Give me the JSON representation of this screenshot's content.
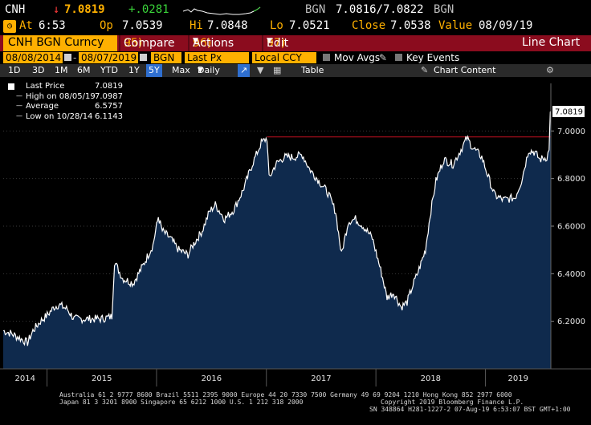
{
  "header": {
    "ticker": "CNH",
    "last_price": "7.0819",
    "change": "+.0281",
    "bid_source": "BGN",
    "bid": "7.0816",
    "ask": "7.0822",
    "ask_source": "BGN"
  },
  "quote": {
    "at_label": "At",
    "at_time": "6:53",
    "open_label": "Op",
    "open": "7.0539",
    "high_label": "Hi",
    "high": "7.0848",
    "low_label": "Lo",
    "low": "7.0521",
    "close_label": "Close",
    "close": "7.0538",
    "value_label": "Value",
    "value_date": "08/09/19"
  },
  "menubar": {
    "security": "CNH BGN Curncy",
    "compare_num": "95)",
    "compare": "Compare",
    "actions_num": "96)",
    "actions": "Actions",
    "edit_num": "97)",
    "edit": "Edit",
    "title": "Line Chart"
  },
  "params": {
    "start_date": "08/08/2014",
    "end_date": "08/07/2019",
    "source": "BGN",
    "field": "Last Px",
    "currency": "Local CCY",
    "mov_avgs": "Mov Avgs",
    "key_events": "Key Events"
  },
  "toolbar": {
    "periods": [
      "1D",
      "3D",
      "1M",
      "6M",
      "YTD",
      "1Y",
      "5Y",
      "Max"
    ],
    "selected_period": "5Y",
    "frequency": "Daily",
    "table": "Table",
    "chart_content": "Chart Content"
  },
  "legend": {
    "last_label": "Last Price",
    "last_value": "7.0819",
    "high_label": "High on 08/05/19",
    "high_value": "7.0987",
    "avg_label": "Average",
    "avg_value": "6.5757",
    "low_label": "Low on 10/28/14",
    "low_value": "6.1143"
  },
  "footer": {
    "line1": "Australia 61 2 9777 8600 Brazil 5511 2395 9000 Europe 44 20 7330 7500 Germany 49 69 9204 1210 Hong Kong 852 2977 6000",
    "line2a": "Japan 81 3 3201 8900       Singapore 65 6212 1000       U.S. 1 212 318 2000",
    "line2b": "Copyright 2019 Bloomberg Finance L.P.",
    "line3": "SN 348864 H281-1227-2 07-Aug-19  6:53:07 BST  GMT+1:00"
  },
  "colors": {
    "accent": "#ffb000",
    "menubar": "#8b0c1e",
    "area_fill": "#0f2a4d",
    "line": "#ffffff",
    "ref_line": "#c01020",
    "selected": "#2f6fd0"
  },
  "chart_data": {
    "type": "area",
    "x_start": "2014-08-08",
    "x_end": "2019-08-07",
    "ylim": [
      6.0,
      7.2
    ],
    "yticks": [
      "6.2000",
      "6.4000",
      "6.6000",
      "6.8000",
      "7.0000"
    ],
    "xtick_labels": [
      "2014",
      "2015",
      "2016",
      "2017",
      "2018",
      "2019"
    ],
    "last_value": 7.0819,
    "reference_line": 6.975,
    "series": [
      {
        "values": [
          [
            "2014-08-08",
            6.16
          ],
          [
            "2014-09-01",
            6.15
          ],
          [
            "2014-10-01",
            6.13
          ],
          [
            "2014-10-28",
            6.11
          ],
          [
            "2014-11-15",
            6.16
          ],
          [
            "2014-12-10",
            6.2
          ],
          [
            "2015-01-05",
            6.23
          ],
          [
            "2015-01-25",
            6.26
          ],
          [
            "2015-02-10",
            6.27
          ],
          [
            "2015-03-10",
            6.25
          ],
          [
            "2015-04-01",
            6.21
          ],
          [
            "2015-05-01",
            6.21
          ],
          [
            "2015-06-01",
            6.21
          ],
          [
            "2015-07-01",
            6.21
          ],
          [
            "2015-08-05",
            6.22
          ],
          [
            "2015-08-14",
            6.45
          ],
          [
            "2015-09-10",
            6.38
          ],
          [
            "2015-10-15",
            6.36
          ],
          [
            "2015-11-15",
            6.43
          ],
          [
            "2015-12-20",
            6.52
          ],
          [
            "2016-01-07",
            6.64
          ],
          [
            "2016-01-20",
            6.58
          ],
          [
            "2016-02-15",
            6.55
          ],
          [
            "2016-03-15",
            6.5
          ],
          [
            "2016-04-15",
            6.48
          ],
          [
            "2016-05-01",
            6.52
          ],
          [
            "2016-06-01",
            6.58
          ],
          [
            "2016-06-25",
            6.66
          ],
          [
            "2016-07-15",
            6.69
          ],
          [
            "2016-08-15",
            6.63
          ],
          [
            "2016-09-15",
            6.67
          ],
          [
            "2016-10-15",
            6.75
          ],
          [
            "2016-11-15",
            6.86
          ],
          [
            "2016-12-15",
            6.95
          ],
          [
            "2017-01-03",
            6.97
          ],
          [
            "2017-01-10",
            6.8
          ],
          [
            "2017-02-01",
            6.86
          ],
          [
            "2017-03-01",
            6.89
          ],
          [
            "2017-04-01",
            6.89
          ],
          [
            "2017-05-01",
            6.9
          ],
          [
            "2017-05-25",
            6.84
          ],
          [
            "2017-06-25",
            6.79
          ],
          [
            "2017-07-25",
            6.74
          ],
          [
            "2017-08-20",
            6.66
          ],
          [
            "2017-09-08",
            6.48
          ],
          [
            "2017-10-01",
            6.62
          ],
          [
            "2017-10-25",
            6.63
          ],
          [
            "2017-11-20",
            6.6
          ],
          [
            "2017-12-20",
            6.55
          ],
          [
            "2018-01-20",
            6.4
          ],
          [
            "2018-02-07",
            6.3
          ],
          [
            "2018-03-01",
            6.32
          ],
          [
            "2018-03-26",
            6.26
          ],
          [
            "2018-04-15",
            6.28
          ],
          [
            "2018-05-01",
            6.34
          ],
          [
            "2018-05-25",
            6.42
          ],
          [
            "2018-06-15",
            6.5
          ],
          [
            "2018-06-30",
            6.64
          ],
          [
            "2018-07-20",
            6.79
          ],
          [
            "2018-08-15",
            6.88
          ],
          [
            "2018-09-15",
            6.86
          ],
          [
            "2018-10-15",
            6.93
          ],
          [
            "2018-10-31",
            6.97
          ],
          [
            "2018-11-20",
            6.93
          ],
          [
            "2018-12-20",
            6.89
          ],
          [
            "2019-01-15",
            6.79
          ],
          [
            "2019-02-01",
            6.73
          ],
          [
            "2019-03-01",
            6.71
          ],
          [
            "2019-04-10",
            6.72
          ],
          [
            "2019-05-01",
            6.79
          ],
          [
            "2019-05-25",
            6.92
          ],
          [
            "2019-06-15",
            6.91
          ],
          [
            "2019-07-01",
            6.88
          ],
          [
            "2019-07-25",
            6.89
          ],
          [
            "2019-08-01",
            6.92
          ],
          [
            "2019-08-05",
            7.08
          ],
          [
            "2019-08-07",
            7.0819
          ]
        ]
      }
    ]
  }
}
